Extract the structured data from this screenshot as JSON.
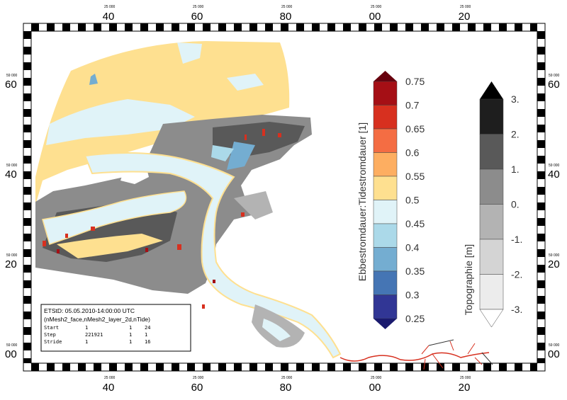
{
  "frame": {
    "top_ticks": [
      {
        "big": "40",
        "small": "25 000"
      },
      {
        "big": "60",
        "small": "25 000"
      },
      {
        "big": "80",
        "small": "25 000"
      },
      {
        "big": "00",
        "small": "25 000"
      },
      {
        "big": "20",
        "small": "25 000"
      }
    ],
    "bottom_ticks": [
      {
        "big": "40",
        "small": "25 000"
      },
      {
        "big": "60",
        "small": "25 000"
      },
      {
        "big": "80",
        "small": "25 000"
      },
      {
        "big": "00",
        "small": "25 000"
      },
      {
        "big": "20",
        "small": "25 000"
      }
    ],
    "left_ticks": [
      {
        "big": "60",
        "small": "59 000"
      },
      {
        "big": "40",
        "small": "59 000"
      },
      {
        "big": "20",
        "small": "59 000"
      },
      {
        "big": "00",
        "small": "59 000"
      }
    ],
    "right_ticks": [
      {
        "big": "60",
        "small": "59 000"
      },
      {
        "big": "40",
        "small": "59 000"
      },
      {
        "big": "20",
        "small": "59 000"
      },
      {
        "big": "00",
        "small": "59 000"
      }
    ]
  },
  "colorbar_main": {
    "title": "Ebbestromdauer:Tidestromdauer [1]",
    "labels": [
      "0.75",
      "0.7",
      "0.65",
      "0.6",
      "0.55",
      "0.5",
      "0.45",
      "0.4",
      "0.35",
      "0.3",
      "0.25"
    ],
    "colors": [
      "#67000d",
      "#a50f15",
      "#d7301f",
      "#f46d43",
      "#fdae61",
      "#fee090",
      "#e0f3f8",
      "#abd9e9",
      "#74add1",
      "#4575b4",
      "#313695",
      "#1a1a6e"
    ]
  },
  "colorbar_topo": {
    "title": "Topographie [m]",
    "labels": [
      "3.",
      "2.",
      "1.",
      "0.",
      "-1.",
      "-2.",
      "-3."
    ],
    "colors": [
      "#000000",
      "#1e1e1e",
      "#595959",
      "#8c8c8c",
      "#b3b3b3",
      "#d4d4d4",
      "#ececec",
      "#ffffff"
    ]
  },
  "info": {
    "title": "ETStD: 05.05.2010-14:00:00 UTC",
    "subtitle": "(nMesh2_face,nMesh2_layer_2d,nTide)",
    "rows": [
      [
        "Start",
        "1",
        "1",
        "24"
      ],
      [
        "Step",
        "221921",
        "1",
        "1"
      ],
      [
        "Stride",
        "1",
        "1",
        "16"
      ]
    ]
  }
}
